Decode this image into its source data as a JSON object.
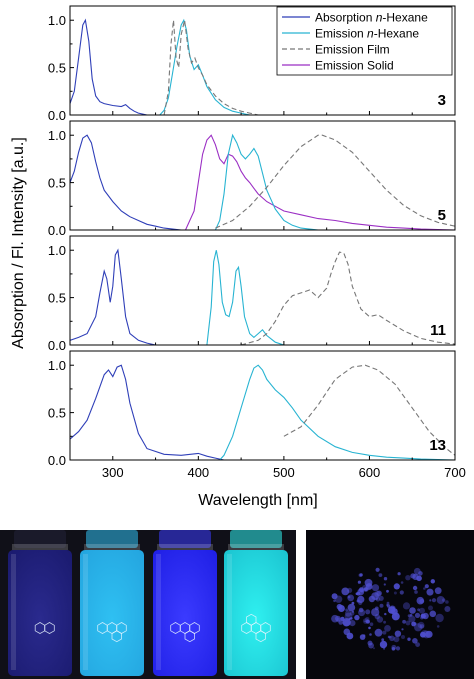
{
  "chart_data": {
    "type": "line",
    "ylabel": "Absorption / Fl. Intensity [a.u.]",
    "xlabel": "Wavelength [nm]",
    "xlim": [
      250,
      700
    ],
    "xticks": [
      300,
      400,
      500,
      600,
      700
    ],
    "xtick_labels": [
      "300",
      "400",
      "500",
      "600",
      "700"
    ],
    "legend": {
      "placement": "top-right",
      "entries": [
        {
          "label": "Absorption n-Hexane",
          "prefix": "Absorption ",
          "italic": "n",
          "suffix": "-Hexane",
          "color": "#2f3fb8",
          "dash": "solid"
        },
        {
          "label": "Emission n-Hexane",
          "prefix": "Emission ",
          "italic": "n",
          "suffix": "-Hexane",
          "color": "#28b4d2",
          "dash": "solid"
        },
        {
          "label": "Emission Film",
          "prefix": "Emission Film",
          "italic": "",
          "suffix": "",
          "color": "#777777",
          "dash": "dashed"
        },
        {
          "label": "Emission Solid",
          "prefix": "Emission Solid",
          "italic": "",
          "suffix": "",
          "color": "#9b2fc4",
          "dash": "solid"
        }
      ]
    },
    "panels": [
      {
        "compound": "3",
        "ylim": [
          0,
          1.15
        ],
        "yticks": [
          0,
          0.5,
          1.0
        ],
        "ytick_labels": [
          "0.0",
          "0.5",
          "1.0"
        ],
        "series": [
          {
            "key": "absorption",
            "x": [
              250,
              255,
              260,
              265,
              268,
              272,
              276,
              280,
              285,
              290,
              300,
              310,
              315,
              320,
              325,
              330,
              340
            ],
            "y": [
              0.12,
              0.25,
              0.6,
              0.95,
              1.0,
              0.78,
              0.38,
              0.2,
              0.14,
              0.12,
              0.1,
              0.09,
              0.11,
              0.07,
              0.04,
              0.02,
              0.0
            ]
          },
          {
            "key": "emission_hexane",
            "x": [
              355,
              360,
              365,
              370,
              375,
              380,
              383,
              386,
              390,
              395,
              400,
              405,
              410,
              420,
              430,
              440,
              450,
              460
            ],
            "y": [
              0.0,
              0.05,
              0.18,
              0.45,
              0.72,
              0.95,
              1.0,
              0.9,
              0.62,
              0.48,
              0.53,
              0.42,
              0.3,
              0.16,
              0.08,
              0.04,
              0.02,
              0.0
            ]
          },
          {
            "key": "emission_film",
            "x": [
              360,
              365,
              368,
              371,
              374,
              377,
              380,
              384,
              388,
              392,
              396,
              400,
              405,
              410,
              420,
              430,
              440,
              450,
              460,
              470
            ],
            "y": [
              0.0,
              0.25,
              0.75,
              1.0,
              0.6,
              0.5,
              0.85,
              1.0,
              0.7,
              0.55,
              0.6,
              0.5,
              0.42,
              0.32,
              0.2,
              0.12,
              0.07,
              0.04,
              0.02,
              0.0
            ]
          }
        ]
      },
      {
        "compound": "5",
        "ylim": [
          0,
          1.15
        ],
        "yticks": [
          0,
          0.5,
          1.0
        ],
        "ytick_labels": [
          "0.0",
          "0.5",
          "1.0"
        ],
        "series": [
          {
            "key": "absorption",
            "x": [
              250,
              255,
              260,
              265,
              270,
              275,
              280,
              285,
              290,
              300,
              310,
              320,
              330,
              340,
              350,
              360,
              380
            ],
            "y": [
              0.5,
              0.62,
              0.82,
              0.97,
              1.0,
              0.92,
              0.72,
              0.55,
              0.42,
              0.3,
              0.2,
              0.14,
              0.1,
              0.06,
              0.04,
              0.02,
              0.0
            ]
          },
          {
            "key": "emission_solid",
            "x": [
              385,
              395,
              400,
              405,
              410,
              415,
              420,
              425,
              430,
              435,
              440,
              445,
              450,
              455,
              460,
              465,
              470,
              480,
              490,
              500,
              520,
              540,
              560,
              580,
              600,
              620,
              640,
              660,
              680,
              700
            ],
            "y": [
              0.0,
              0.2,
              0.5,
              0.8,
              0.95,
              1.0,
              0.9,
              0.75,
              0.7,
              0.8,
              0.78,
              0.72,
              0.62,
              0.55,
              0.5,
              0.44,
              0.38,
              0.3,
              0.25,
              0.2,
              0.16,
              0.12,
              0.1,
              0.07,
              0.05,
              0.03,
              0.02,
              0.01,
              0.005,
              0.0
            ]
          },
          {
            "key": "emission_hexane",
            "x": [
              420,
              425,
              430,
              435,
              440,
              445,
              450,
              455,
              460,
              465,
              470,
              475,
              480,
              490,
              500,
              510,
              520,
              540
            ],
            "y": [
              0.0,
              0.1,
              0.38,
              0.8,
              1.0,
              0.92,
              0.8,
              0.75,
              0.8,
              0.86,
              0.78,
              0.6,
              0.42,
              0.22,
              0.1,
              0.05,
              0.02,
              0.0
            ]
          },
          {
            "key": "emission_film",
            "x": [
              420,
              440,
              460,
              480,
              500,
              520,
              540,
              545,
              560,
              580,
              600,
              620,
              640,
              660,
              680,
              700
            ],
            "y": [
              0.02,
              0.1,
              0.25,
              0.45,
              0.68,
              0.88,
              1.0,
              1.0,
              0.95,
              0.82,
              0.62,
              0.42,
              0.26,
              0.15,
              0.08,
              0.04
            ]
          }
        ]
      },
      {
        "compound": "11",
        "ylim": [
          0,
          1.15
        ],
        "yticks": [
          0,
          0.5,
          1.0
        ],
        "ytick_labels": [
          "0.0",
          "0.5",
          "1.0"
        ],
        "series": [
          {
            "key": "absorption",
            "x": [
              250,
              260,
              270,
              280,
              285,
              290,
              293,
              297,
              300,
              303,
              306,
              310,
              315,
              320,
              330,
              340,
              350
            ],
            "y": [
              0.05,
              0.08,
              0.12,
              0.3,
              0.55,
              0.78,
              0.7,
              0.45,
              0.62,
              0.95,
              1.0,
              0.7,
              0.3,
              0.12,
              0.05,
              0.02,
              0.0
            ]
          },
          {
            "key": "emission_hexane",
            "x": [
              410,
              415,
              418,
              421,
              424,
              428,
              432,
              436,
              440,
              444,
              447,
              450,
              454,
              460,
              465,
              470,
              475,
              480,
              490,
              500
            ],
            "y": [
              0.0,
              0.4,
              0.88,
              1.0,
              0.85,
              0.45,
              0.32,
              0.3,
              0.45,
              0.78,
              0.82,
              0.62,
              0.3,
              0.12,
              0.08,
              0.12,
              0.16,
              0.1,
              0.03,
              0.0
            ]
          },
          {
            "key": "emission_film",
            "x": [
              450,
              470,
              480,
              490,
              500,
              510,
              520,
              530,
              540,
              550,
              555,
              560,
              565,
              570,
              575,
              580,
              590,
              600,
              610,
              620,
              640,
              660,
              680,
              700
            ],
            "y": [
              0.0,
              0.05,
              0.12,
              0.25,
              0.42,
              0.52,
              0.55,
              0.58,
              0.5,
              0.6,
              0.75,
              0.88,
              0.98,
              0.97,
              0.85,
              0.62,
              0.38,
              0.3,
              0.32,
              0.26,
              0.15,
              0.07,
              0.03,
              0.01
            ]
          }
        ]
      },
      {
        "compound": "13",
        "ylim": [
          0,
          1.15
        ],
        "yticks": [
          0,
          0.5,
          1.0
        ],
        "ytick_labels": [
          "0.0",
          "0.5",
          "1.0"
        ],
        "series": [
          {
            "key": "absorption",
            "x": [
              250,
              260,
              270,
              280,
              290,
              295,
              300,
              305,
              310,
              315,
              320,
              330,
              340,
              360,
              380,
              400,
              410,
              420,
              430
            ],
            "y": [
              0.22,
              0.3,
              0.42,
              0.65,
              0.9,
              0.95,
              0.88,
              0.98,
              1.0,
              0.85,
              0.6,
              0.28,
              0.12,
              0.06,
              0.05,
              0.07,
              0.04,
              0.02,
              0.0
            ]
          },
          {
            "key": "emission_hexane",
            "x": [
              425,
              430,
              440,
              450,
              460,
              465,
              470,
              475,
              480,
              490,
              500,
              510,
              520,
              540,
              560,
              580,
              600,
              620,
              640,
              660,
              680,
              700
            ],
            "y": [
              0.0,
              0.05,
              0.25,
              0.55,
              0.85,
              0.97,
              1.0,
              0.95,
              0.85,
              0.74,
              0.66,
              0.55,
              0.42,
              0.25,
              0.14,
              0.08,
              0.05,
              0.03,
              0.02,
              0.01,
              0.005,
              0.0
            ]
          },
          {
            "key": "emission_film",
            "x": [
              500,
              520,
              540,
              560,
              580,
              595,
              610,
              630,
              650,
              670,
              690,
              700
            ],
            "y": [
              0.25,
              0.35,
              0.58,
              0.85,
              0.98,
              1.0,
              0.95,
              0.8,
              0.55,
              0.3,
              0.12,
              0.05
            ]
          }
        ]
      }
    ]
  },
  "photos": {
    "vials": [
      {
        "glow": "#2a2a8e",
        "liquid": "#1b1b70"
      },
      {
        "glow": "#2fc0f2",
        "liquid": "#24a6e0"
      },
      {
        "glow": "#3b3bff",
        "liquid": "#2020e6"
      },
      {
        "glow": "#2ff0f0",
        "liquid": "#1cc6d2"
      }
    ],
    "solid_color": "#4f4fd0"
  }
}
